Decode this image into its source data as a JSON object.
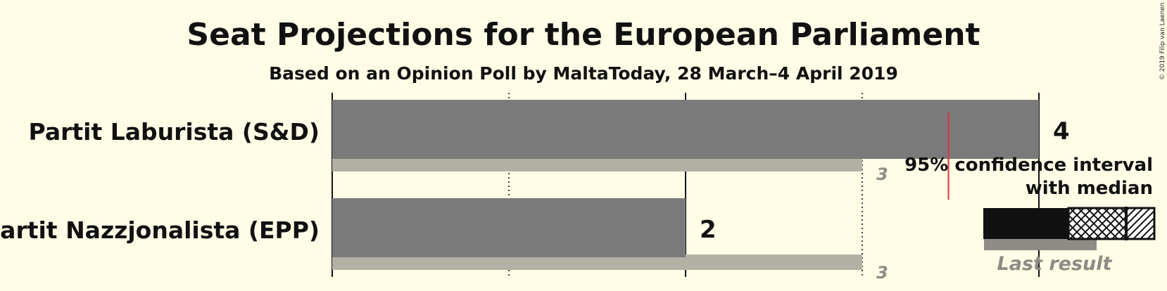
{
  "chart_data": {
    "type": "bar",
    "title": "Seat Projections for the European Parliament",
    "subtitle": "Based on an Opinion Poll by MaltaToday, 28 March–4 April 2019",
    "copyright": "© 2019 Filip van Laenen",
    "categories": [
      "Partit Laburista (S&D)",
      "Partit Nazzjonalista (EPP)"
    ],
    "series": [
      {
        "name": "Median",
        "values": [
          4,
          2
        ]
      },
      {
        "name": "Last result",
        "values": [
          3,
          3
        ]
      }
    ],
    "median_labels": [
      "4",
      "2"
    ],
    "last_result_labels": [
      "3",
      "3"
    ],
    "majority_line": 3.5,
    "xlim": [
      0,
      4
    ],
    "x_ticks": [
      0,
      1,
      2,
      3,
      4
    ],
    "legend": {
      "title_line1": "95% confidence interval",
      "title_line2": "with median",
      "last_result": "Last result",
      "placement": "right"
    },
    "colors": {
      "background": "#FFFDE6",
      "median_bar": "#7A7A7A",
      "last_result_bar": "#B3B0A4",
      "majority_line": "#E0303A",
      "legend_dark": "#111111",
      "legend_last": "#8C8C84"
    }
  }
}
